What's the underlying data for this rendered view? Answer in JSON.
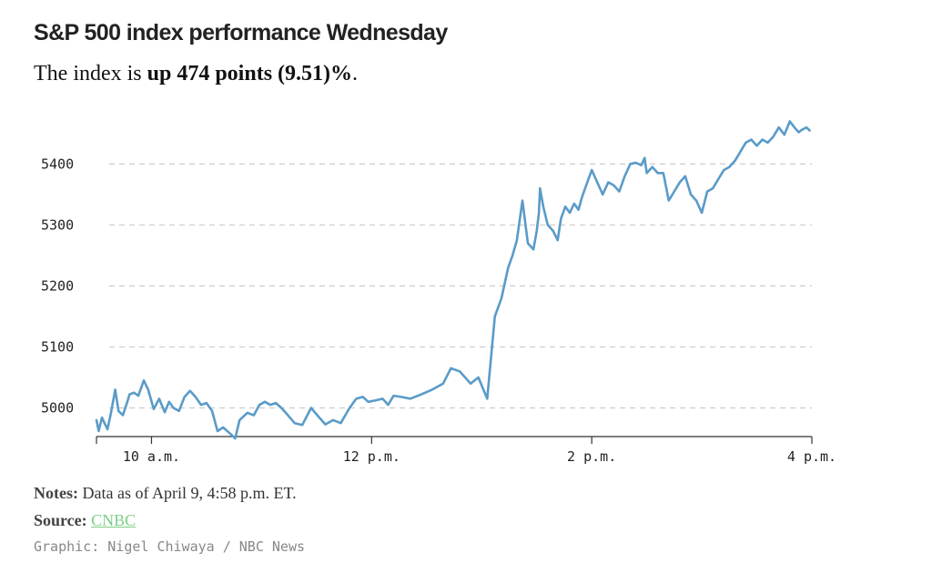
{
  "header": {
    "title": "S&P 500 index performance Wednesday",
    "subtitle_prefix": "The index is ",
    "subtitle_highlight": "up 474 points (9.51)%",
    "subtitle_suffix": "."
  },
  "chart_data": {
    "type": "line",
    "title": "S&P 500 index performance Wednesday",
    "xlabel": "",
    "ylabel": "",
    "x_ticks": [
      {
        "label": "10 a.m.",
        "hour": 10
      },
      {
        "label": "12 p.m.",
        "hour": 12
      },
      {
        "label": "2 p.m.",
        "hour": 14
      },
      {
        "label": "4 p.m.",
        "hour": 16
      }
    ],
    "y_ticks": [
      5000,
      5100,
      5200,
      5300,
      5400
    ],
    "xlim": [
      9.5,
      16.0
    ],
    "ylim": [
      4953,
      5475
    ],
    "grid": "horizontal dashed",
    "series": [
      {
        "color": "#5a9bc8",
        "x": [
          9.5,
          9.52,
          9.55,
          9.6,
          9.63,
          9.67,
          9.7,
          9.74,
          9.78,
          9.8,
          9.84,
          9.88,
          9.93,
          9.97,
          10.02,
          10.07,
          10.12,
          10.16,
          10.2,
          10.25,
          10.3,
          10.35,
          10.4,
          10.45,
          10.5,
          10.55,
          10.6,
          10.65,
          10.72,
          10.76,
          10.8,
          10.87,
          10.93,
          10.98,
          11.03,
          11.08,
          11.13,
          11.18,
          11.23,
          11.3,
          11.37,
          11.45,
          11.52,
          11.58,
          11.65,
          11.72,
          11.8,
          11.86,
          11.92,
          11.97,
          12.03,
          12.1,
          12.15,
          12.2,
          12.27,
          12.35,
          12.45,
          12.55,
          12.65,
          12.72,
          12.8,
          12.9,
          12.97,
          13.05,
          13.12,
          13.18,
          13.24,
          13.28,
          13.32,
          13.37,
          13.42,
          13.47,
          13.5,
          13.52,
          13.53,
          13.56,
          13.6,
          13.65,
          13.69,
          13.72,
          13.76,
          13.8,
          13.84,
          13.88,
          13.91,
          13.94,
          13.97,
          14.0,
          14.05,
          14.1,
          14.15,
          14.2,
          14.25,
          14.3,
          14.35,
          14.4,
          14.45,
          14.48,
          14.5,
          14.55,
          14.6,
          14.65,
          14.7,
          14.75,
          14.8,
          14.85,
          14.9,
          14.95,
          15.0,
          15.05,
          15.1,
          15.15,
          15.2,
          15.25,
          15.3,
          15.35,
          15.4,
          15.45,
          15.5,
          15.55,
          15.6,
          15.65,
          15.7,
          15.75,
          15.8,
          15.85,
          15.88,
          15.91,
          15.95,
          15.98
        ],
        "values": [
          4980,
          4962,
          4984,
          4965,
          4990,
          5030,
          4995,
          4988,
          5010,
          5022,
          5025,
          5020,
          5045,
          5030,
          4998,
          5015,
          4993,
          5010,
          5000,
          4995,
          5018,
          5028,
          5018,
          5005,
          5008,
          4995,
          4962,
          4968,
          4957,
          4950,
          4980,
          4992,
          4988,
          5005,
          5010,
          5005,
          5008,
          5000,
          4990,
          4975,
          4972,
          5000,
          4985,
          4973,
          4980,
          4975,
          5000,
          5015,
          5018,
          5010,
          5012,
          5015,
          5005,
          5020,
          5018,
          5015,
          5022,
          5030,
          5040,
          5065,
          5060,
          5040,
          5050,
          5015,
          5150,
          5180,
          5230,
          5250,
          5275,
          5340,
          5270,
          5260,
          5290,
          5320,
          5360,
          5330,
          5300,
          5290,
          5275,
          5310,
          5330,
          5320,
          5335,
          5325,
          5345,
          5360,
          5375,
          5390,
          5370,
          5350,
          5370,
          5365,
          5355,
          5380,
          5400,
          5402,
          5398,
          5410,
          5385,
          5395,
          5385,
          5385,
          5340,
          5355,
          5370,
          5380,
          5350,
          5340,
          5320,
          5355,
          5360,
          5375,
          5390,
          5395,
          5405,
          5420,
          5435,
          5440,
          5430,
          5440,
          5435,
          5445,
          5460,
          5448,
          5470,
          5458,
          5452,
          5456,
          5460,
          5455
        ]
      }
    ]
  },
  "footer": {
    "notes_label": "Notes:",
    "notes_text": " Data as of April 9, 4:58 p.m. ET.",
    "source_label": "Source:",
    "source_link": "CNBC",
    "credit": "Graphic: Nigel Chiwaya / NBC News"
  }
}
